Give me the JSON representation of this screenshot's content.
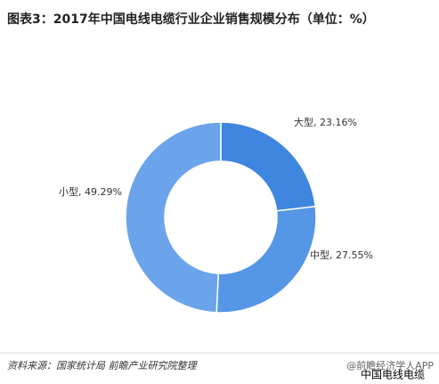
{
  "chart_data": {
    "type": "donut",
    "title": "图表3：2017年中国电线电缆行业企业销售规模分布（单位：%）",
    "categories": [
      "大型",
      "中型",
      "小型"
    ],
    "values": [
      23.16,
      27.55,
      49.29
    ],
    "value_labels": [
      "大型, 23.16%",
      "中型, 27.55%",
      "小型, 49.29%"
    ],
    "colors": [
      "#3f86e0",
      "#5596e6",
      "#6ba4eb"
    ],
    "source": "资料来源：国家统计局  前瞻产业研究院整理",
    "brand": "@前瞻经济学人APP",
    "overlay": "中国电线电缆"
  }
}
